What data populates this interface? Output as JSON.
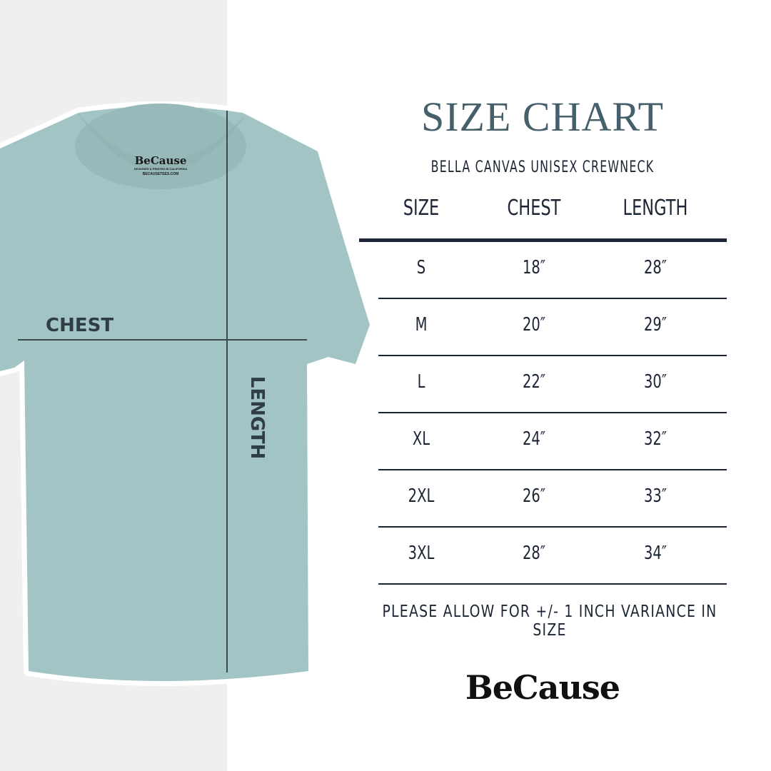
{
  "title": "SIZE CHART",
  "subtitle": "BELLA CANVAS UNISEX CREWNECK",
  "columns": [
    "SIZE",
    "CHEST",
    "LENGTH"
  ],
  "rows": [
    [
      "S",
      "18″",
      "28″"
    ],
    [
      "M",
      "20″",
      "29″"
    ],
    [
      "L",
      "22″",
      "30″"
    ],
    [
      "XL",
      "24″",
      "32″"
    ],
    [
      "2XL",
      "26″",
      "33″"
    ],
    [
      "3XL",
      "28″",
      "34″"
    ]
  ],
  "note": "PLEASE ALLOW FOR +/- 1 INCH VARIANCE IN SIZE",
  "brand": "BeCause",
  "shirt": {
    "chest_label": "CHEST",
    "length_label": "LENGTH",
    "tag_brand": "BeCause",
    "tag_line1": "DESIGNED & PRINTED IN CALIFORNIA",
    "tag_line2": "BECAUSETEES.COM",
    "color": "#a3c4c4"
  },
  "colors": {
    "title": "#45606b",
    "text": "#1b2535"
  }
}
